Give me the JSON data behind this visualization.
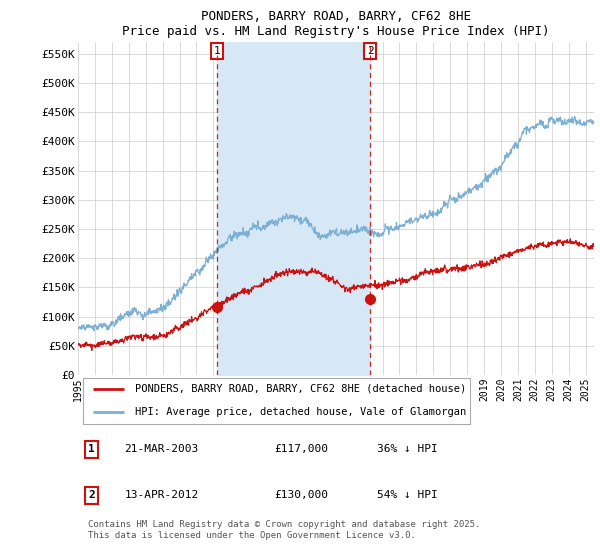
{
  "title": "PONDERS, BARRY ROAD, BARRY, CF62 8HE",
  "subtitle": "Price paid vs. HM Land Registry's House Price Index (HPI)",
  "ylabel_ticks": [
    "£0",
    "£50K",
    "£100K",
    "£150K",
    "£200K",
    "£250K",
    "£300K",
    "£350K",
    "£400K",
    "£450K",
    "£500K",
    "£550K"
  ],
  "ytick_values": [
    0,
    50000,
    100000,
    150000,
    200000,
    250000,
    300000,
    350000,
    400000,
    450000,
    500000,
    550000
  ],
  "ylim": [
    0,
    570000
  ],
  "xlim_start": 1995.0,
  "xlim_end": 2025.5,
  "background_color": "#ffffff",
  "plot_bg_color": "#ffffff",
  "hpi_color": "#7bafd4",
  "hpi_fill_color": "#d6e8f5",
  "price_color": "#cc1111",
  "sale1_x": 2003.22,
  "sale1_y": 117000,
  "sale2_x": 2012.28,
  "sale2_y": 130000,
  "legend_house_label": "PONDERS, BARRY ROAD, BARRY, CF62 8HE (detached house)",
  "legend_hpi_label": "HPI: Average price, detached house, Vale of Glamorgan",
  "note1_date": "21-MAR-2003",
  "note1_price": "£117,000",
  "note1_hpi": "36% ↓ HPI",
  "note2_date": "13-APR-2012",
  "note2_price": "£130,000",
  "note2_hpi": "54% ↓ HPI",
  "footer": "Contains HM Land Registry data © Crown copyright and database right 2025.\nThis data is licensed under the Open Government Licence v3.0."
}
